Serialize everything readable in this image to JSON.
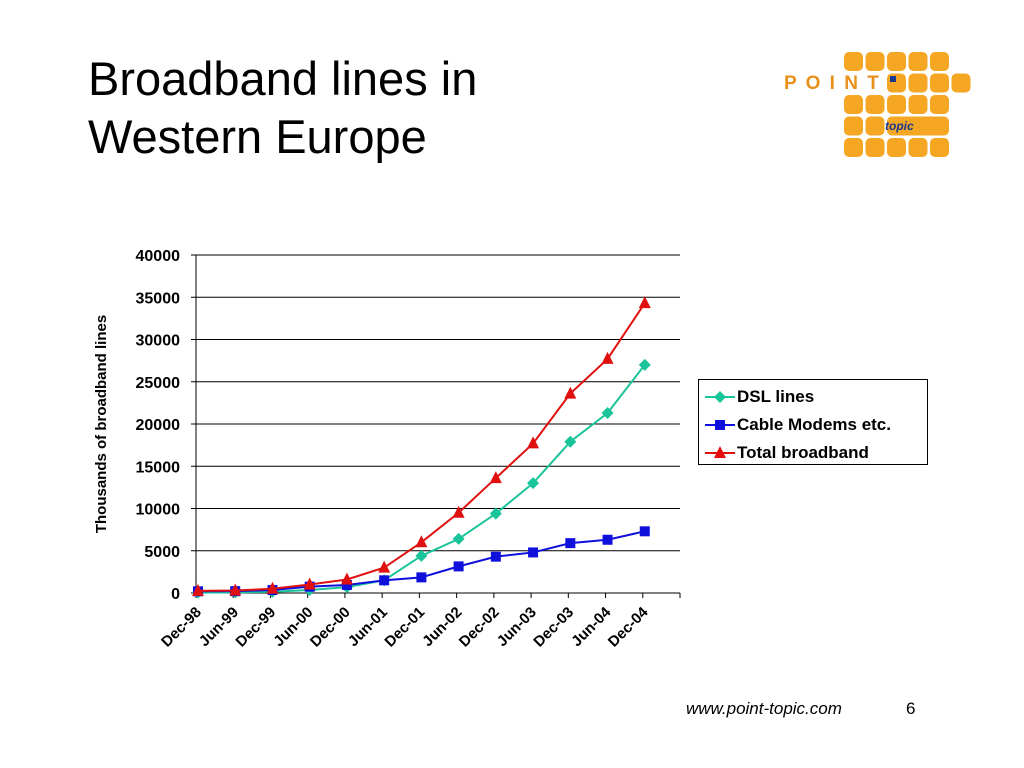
{
  "slide": {
    "title_line1": "Broadband lines in",
    "title_line2": "Western Europe",
    "footer_url": "www.point-topic.com",
    "page_number": "6"
  },
  "logo": {
    "word": "P O I N T",
    "sub": "topic",
    "color": "#F5A623",
    "word_color": "#E8901A",
    "dot_color": "#1A3A8F"
  },
  "chart_data": {
    "type": "line",
    "title": "",
    "xlabel": "",
    "ylabel": "Thousands of broadband lines",
    "categories": [
      "Dec-98",
      "Jun-99",
      "Dec-99",
      "Jun-00",
      "Dec-00",
      "Jun-01",
      "Dec-01",
      "Jun-02",
      "Dec-02",
      "Jun-03",
      "Dec-03",
      "Jun-04",
      "Dec-04"
    ],
    "ylim": [
      0,
      40000
    ],
    "yticks": [
      0,
      5000,
      10000,
      15000,
      20000,
      25000,
      30000,
      35000,
      40000
    ],
    "grid": true,
    "legend_position": "right",
    "series": [
      {
        "name": "DSL lines",
        "color": "#1AC49A",
        "marker": "diamond",
        "values": [
          50,
          80,
          150,
          350,
          700,
          1500,
          4400,
          6400,
          9400,
          13000,
          17900,
          21300,
          27000
        ]
      },
      {
        "name": "Cable Modems etc.",
        "color": "#1010DD",
        "marker": "square",
        "values": [
          200,
          220,
          350,
          750,
          950,
          1500,
          1850,
          3150,
          4300,
          4800,
          5900,
          6300,
          7300
        ]
      },
      {
        "name": "Total broadband",
        "color": "#E01010",
        "marker": "triangle",
        "values": [
          250,
          300,
          500,
          1000,
          1600,
          3000,
          6000,
          9500,
          13600,
          17700,
          23600,
          27700,
          34300
        ]
      }
    ]
  }
}
